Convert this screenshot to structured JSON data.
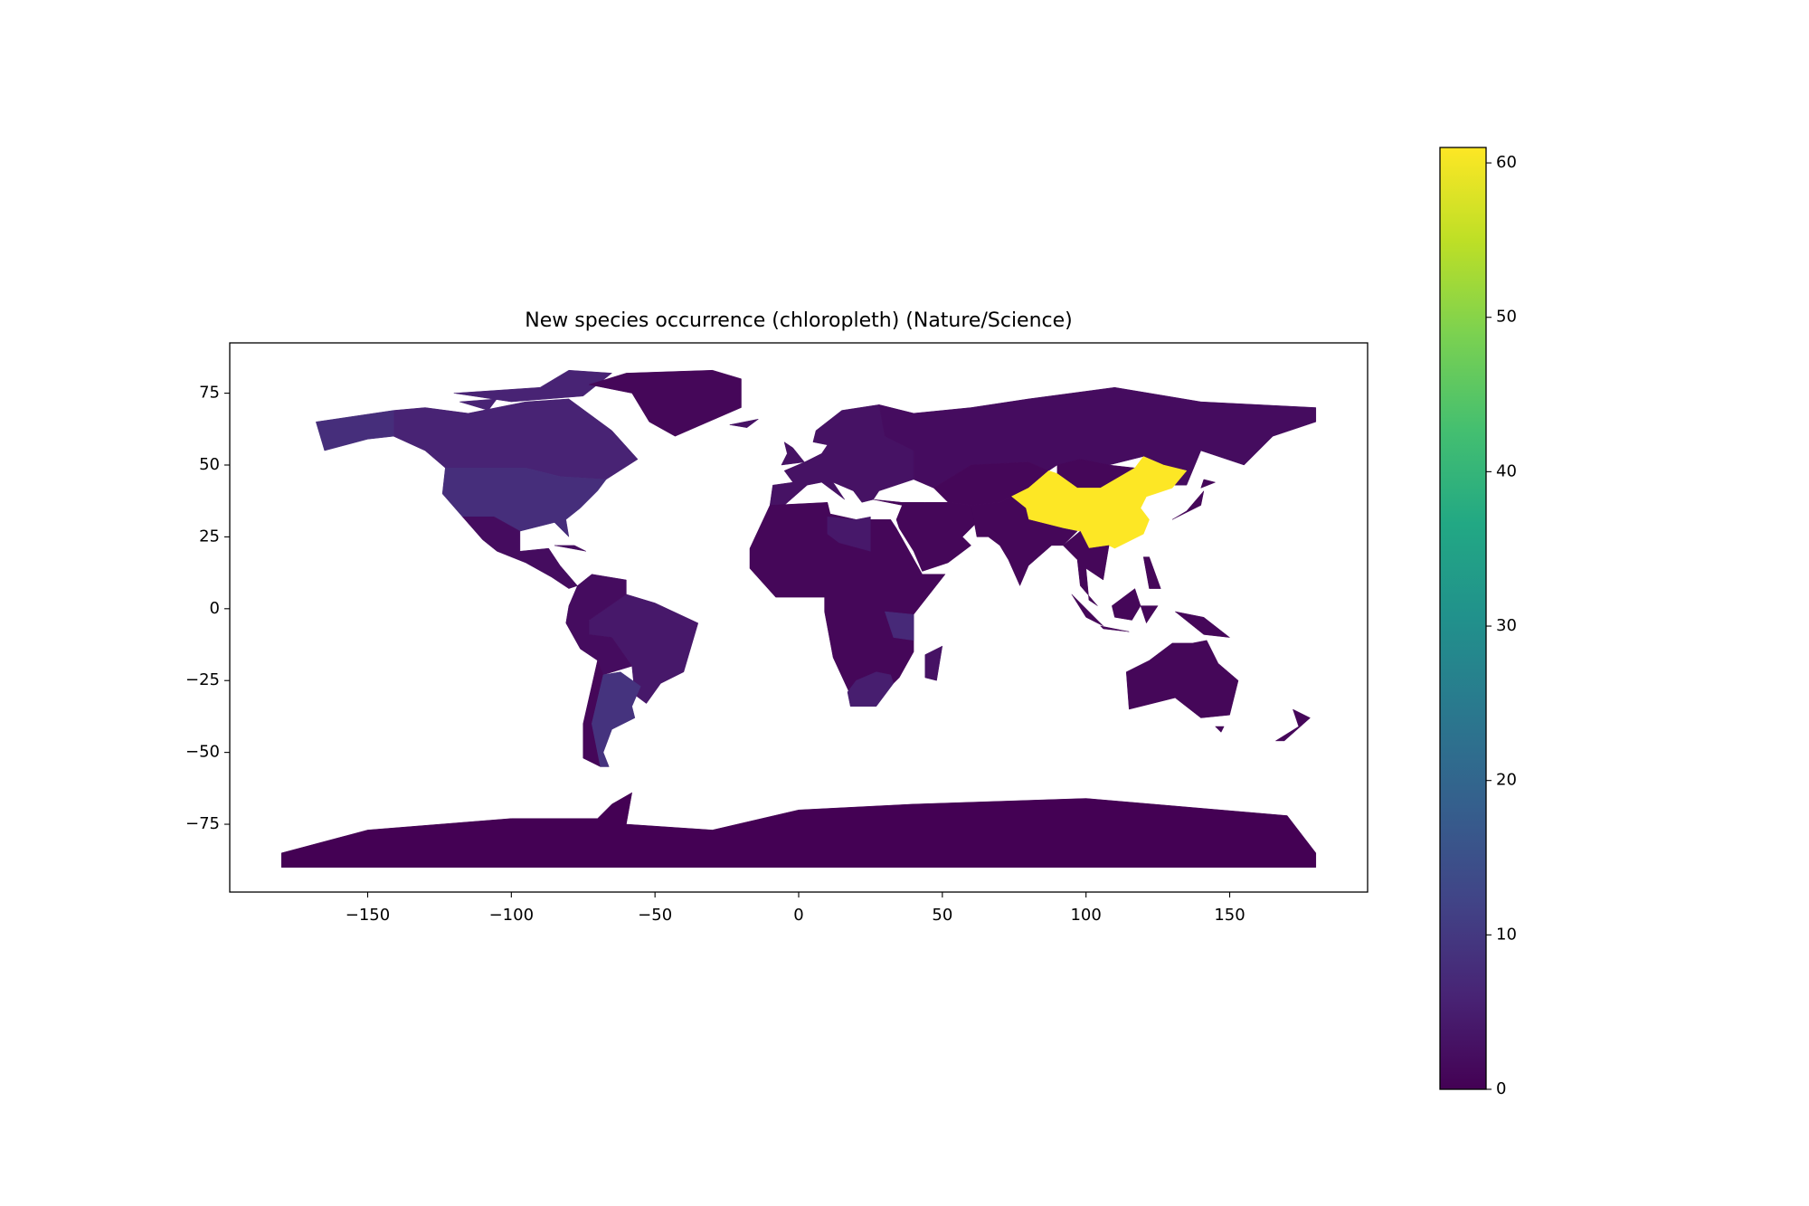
{
  "chart_data": {
    "type": "choropleth",
    "title": "New species occurrence (chloropleth)  (Nature/Science)",
    "values": [
      6,
      8,
      1,
      2,
      4,
      2,
      1,
      9,
      3,
      2,
      1,
      1,
      61,
      1,
      1,
      1,
      1,
      4,
      7,
      5,
      3,
      1,
      1,
      1,
      1,
      0,
      1
    ],
    "colormap": "viridis",
    "clim": [
      0,
      61
    ],
    "cticks": [
      0,
      10,
      20,
      30,
      40,
      50,
      60
    ],
    "xlim": [
      -198,
      198
    ],
    "ylim": [
      -98.6,
      92.5
    ],
    "xticks": [
      {
        "value": -150,
        "label": "−150"
      },
      {
        "value": -100,
        "label": "−100"
      },
      {
        "value": -50,
        "label": "−50"
      },
      0,
      50,
      100,
      150
    ],
    "yticks": [
      {
        "value": -75,
        "label": "−75"
      },
      {
        "value": -50,
        "label": "−50"
      },
      {
        "value": -25,
        "label": "−25"
      },
      0,
      25,
      50,
      75
    ]
  }
}
